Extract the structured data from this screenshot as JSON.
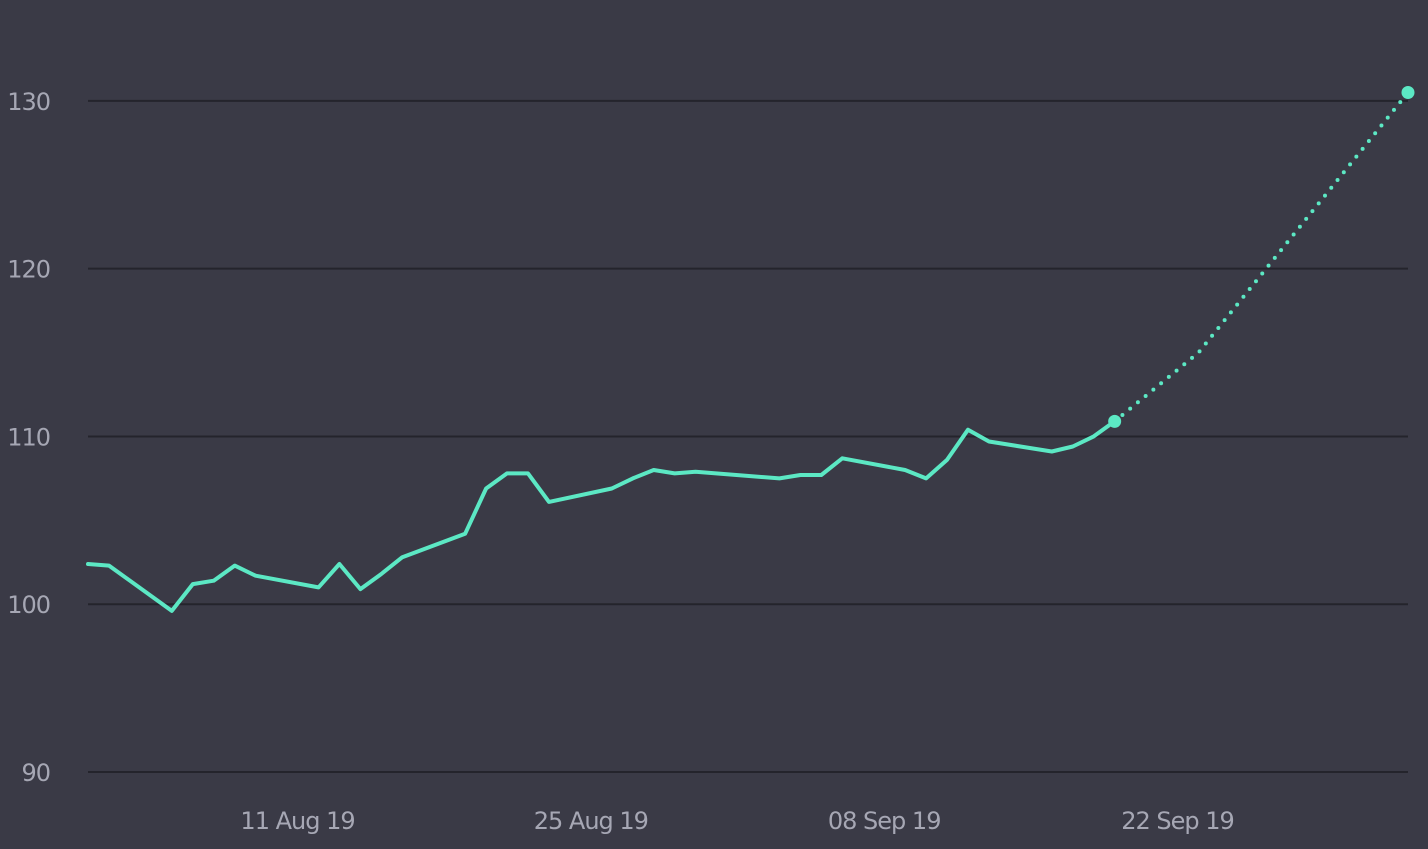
{
  "chart_data": {
    "type": "line",
    "title": "",
    "xlabel": "",
    "ylabel": "",
    "ylim": [
      90,
      135
    ],
    "xlim": [
      "2019-08-01",
      "2019-10-03"
    ],
    "grid": true,
    "legend": "none",
    "y_ticks": [
      {
        "value": 90,
        "label": "90"
      },
      {
        "value": 100,
        "label": "100"
      },
      {
        "value": 110,
        "label": "110"
      },
      {
        "value": 120,
        "label": "120"
      },
      {
        "value": 130,
        "label": "130"
      }
    ],
    "x_ticks": [
      {
        "value": "2019-08-11",
        "label": "11 Aug 19"
      },
      {
        "value": "2019-08-25",
        "label": "25 Aug 19"
      },
      {
        "value": "2019-09-08",
        "label": "08 Sep 19"
      },
      {
        "value": "2019-09-22",
        "label": "22 Sep 19"
      }
    ],
    "series": [
      {
        "style": "solid",
        "color": "#5ce8c4",
        "points": [
          {
            "x": "2019-08-01",
            "y": 102.4
          },
          {
            "x": "2019-08-02",
            "y": 102.3
          },
          {
            "x": "2019-08-05",
            "y": 99.6
          },
          {
            "x": "2019-08-06",
            "y": 101.2
          },
          {
            "x": "2019-08-07",
            "y": 101.4
          },
          {
            "x": "2019-08-08",
            "y": 102.3
          },
          {
            "x": "2019-08-09",
            "y": 101.7
          },
          {
            "x": "2019-08-12",
            "y": 101.0
          },
          {
            "x": "2019-08-13",
            "y": 102.4
          },
          {
            "x": "2019-08-14",
            "y": 100.9
          },
          {
            "x": "2019-08-15",
            "y": 101.8
          },
          {
            "x": "2019-08-16",
            "y": 102.8
          },
          {
            "x": "2019-08-19",
            "y": 104.2
          },
          {
            "x": "2019-08-20",
            "y": 106.9
          },
          {
            "x": "2019-08-21",
            "y": 107.8
          },
          {
            "x": "2019-08-22",
            "y": 107.8
          },
          {
            "x": "2019-08-23",
            "y": 106.1
          },
          {
            "x": "2019-08-26",
            "y": 106.9
          },
          {
            "x": "2019-08-27",
            "y": 107.5
          },
          {
            "x": "2019-08-28",
            "y": 108.0
          },
          {
            "x": "2019-08-29",
            "y": 107.8
          },
          {
            "x": "2019-08-30",
            "y": 107.9
          },
          {
            "x": "2019-09-03",
            "y": 107.5
          },
          {
            "x": "2019-09-04",
            "y": 107.7
          },
          {
            "x": "2019-09-05",
            "y": 107.7
          },
          {
            "x": "2019-09-06",
            "y": 108.7
          },
          {
            "x": "2019-09-09",
            "y": 108.0
          },
          {
            "x": "2019-09-10",
            "y": 107.5
          },
          {
            "x": "2019-09-11",
            "y": 108.6
          },
          {
            "x": "2019-09-12",
            "y": 110.4
          },
          {
            "x": "2019-09-13",
            "y": 109.7
          },
          {
            "x": "2019-09-16",
            "y": 109.1
          },
          {
            "x": "2019-09-17",
            "y": 109.4
          },
          {
            "x": "2019-09-18",
            "y": 110.0
          },
          {
            "x": "2019-09-19",
            "y": 110.9
          }
        ]
      },
      {
        "style": "dotted",
        "color": "#5ce8c4",
        "points": [
          {
            "x": "2019-09-19",
            "y": 110.9
          },
          {
            "x": "2019-09-23",
            "y": 115.0
          },
          {
            "x": "2019-10-03",
            "y": 130.5
          }
        ]
      }
    ],
    "markers": [
      {
        "x": "2019-09-19",
        "y": 110.9
      },
      {
        "x": "2019-10-03",
        "y": 130.5
      }
    ],
    "colors": {
      "background": "#3a3a46",
      "grid": "#24242c",
      "tick_text": "#a6a7b4",
      "line": "#5ce8c4"
    }
  }
}
